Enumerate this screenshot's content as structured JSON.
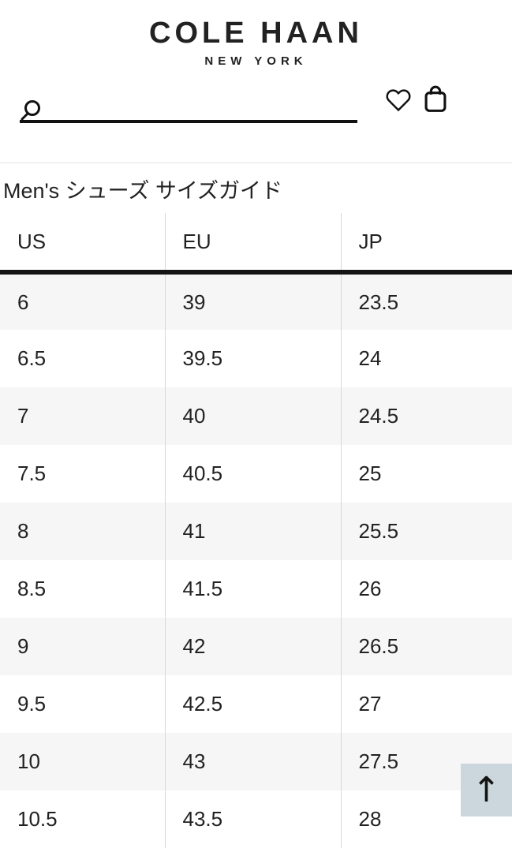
{
  "brand": {
    "logo": "COLE HAAN",
    "tagline": "NEW YORK"
  },
  "search": {
    "value": "",
    "placeholder": ""
  },
  "page": {
    "title": "Men's シューズ サイズガイド"
  },
  "size_table": {
    "columns": [
      "US",
      "EU",
      "JP"
    ],
    "rows": [
      [
        "6",
        "39",
        "23.5"
      ],
      [
        "6.5",
        "39.5",
        "24"
      ],
      [
        "7",
        "40",
        "24.5"
      ],
      [
        "7.5",
        "40.5",
        "25"
      ],
      [
        "8",
        "41",
        "25.5"
      ],
      [
        "8.5",
        "41.5",
        "26"
      ],
      [
        "9",
        "42",
        "26.5"
      ],
      [
        "9.5",
        "42.5",
        "27"
      ],
      [
        "10",
        "43",
        "27.5"
      ],
      [
        "10.5",
        "43.5",
        "28"
      ]
    ]
  },
  "back_to_top": {
    "glyph": "↑"
  },
  "colors": {
    "menu_accent": "#3272d9",
    "row_alt": "#f6f6f6",
    "column_divider": "#d8d8d8",
    "back_to_top_bg": "#cbd7dc",
    "text": "#1c1c1c"
  }
}
